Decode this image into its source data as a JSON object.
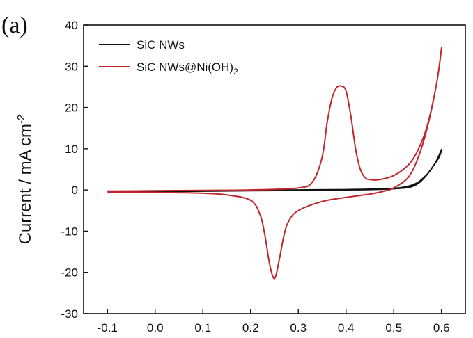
{
  "chart_data": {
    "type": "line",
    "panel_label": "(a)",
    "title": "",
    "xlabel": "",
    "ylabel": "Current / mA cm",
    "ylabel_sup": "-2",
    "xlim": [
      -0.15,
      0.65
    ],
    "ylim": [
      -30,
      40
    ],
    "x_ticks": [
      -0.1,
      0.0,
      0.1,
      0.2,
      0.3,
      0.4,
      0.5,
      0.6
    ],
    "x_tick_labels": [
      "-0.1",
      "0.0",
      "0.1",
      "0.2",
      "0.3",
      "0.4",
      "0.5",
      "0.6"
    ],
    "y_ticks": [
      -30,
      -20,
      -10,
      0,
      10,
      20,
      30,
      40
    ],
    "y_tick_labels": [
      "-30",
      "-20",
      "-10",
      "0",
      "10",
      "20",
      "30",
      "40"
    ],
    "grid": false,
    "legend_position": "top-left",
    "series": [
      {
        "name": "SiC NWs",
        "color": "#111111",
        "x": [
          -0.1,
          0.0,
          0.1,
          0.2,
          0.3,
          0.4,
          0.45,
          0.5,
          0.53,
          0.55,
          0.57,
          0.58,
          0.59,
          0.6,
          0.59,
          0.55,
          0.5,
          0.4,
          0.3,
          0.2,
          0.1,
          0.0,
          -0.1
        ],
        "y": [
          -0.3,
          -0.3,
          -0.2,
          -0.1,
          0.0,
          0.1,
          0.2,
          0.4,
          0.9,
          1.8,
          3.8,
          5.3,
          7.2,
          9.8,
          7.0,
          1.5,
          0.3,
          0.0,
          -0.1,
          -0.2,
          -0.3,
          -0.4,
          -0.4
        ]
      },
      {
        "name": "SiC NWs@Ni(OH)",
        "name_sub": "2",
        "color": "#c0272d",
        "x": [
          -0.1,
          0.0,
          0.1,
          0.2,
          0.3,
          0.33,
          0.35,
          0.36,
          0.37,
          0.38,
          0.39,
          0.4,
          0.41,
          0.42,
          0.43,
          0.44,
          0.45,
          0.47,
          0.5,
          0.53,
          0.55,
          0.57,
          0.59,
          0.6,
          0.59,
          0.57,
          0.55,
          0.53,
          0.5,
          0.48,
          0.45,
          0.4,
          0.35,
          0.3,
          0.28,
          0.27,
          0.26,
          0.25,
          0.24,
          0.23,
          0.22,
          0.2,
          0.15,
          0.1,
          0.0,
          -0.1
        ],
        "y": [
          -0.3,
          -0.2,
          -0.1,
          0.0,
          0.5,
          2.0,
          8.0,
          16.0,
          22.0,
          24.8,
          25.2,
          24.0,
          18.0,
          10.0,
          5.0,
          3.0,
          2.5,
          2.5,
          3.5,
          6.0,
          9.5,
          15.5,
          26.0,
          34.5,
          26.0,
          15.0,
          7.5,
          3.0,
          0.5,
          -0.3,
          -1.0,
          -1.8,
          -2.8,
          -5.0,
          -7.5,
          -11.0,
          -17.0,
          -21.5,
          -18.0,
          -11.0,
          -6.0,
          -2.5,
          -1.2,
          -0.8,
          -0.6,
          -0.6
        ]
      }
    ]
  }
}
